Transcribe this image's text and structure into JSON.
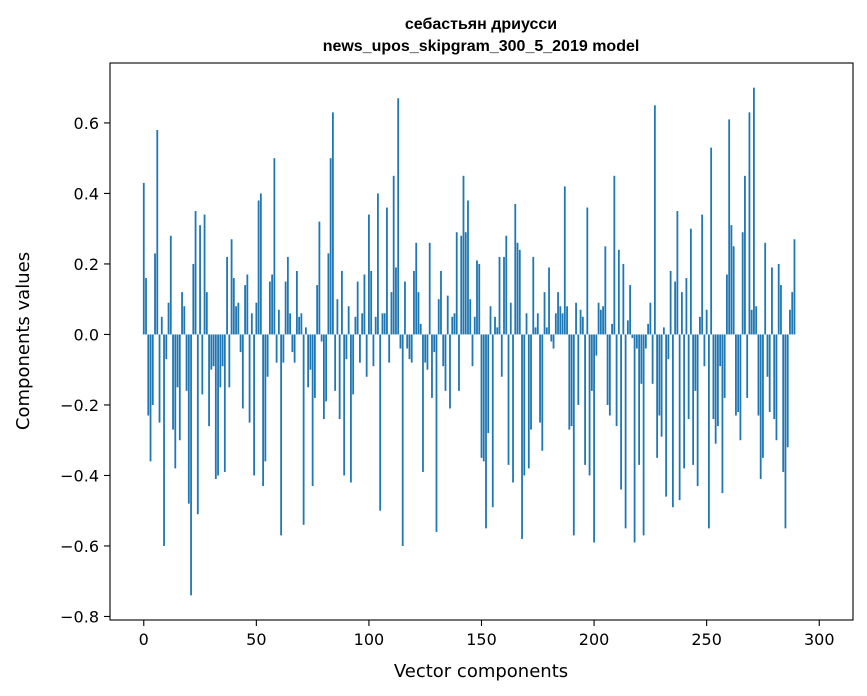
{
  "chart_data": {
    "type": "bar",
    "title": [
      "себастьян дриусси",
      "news_upos_skipgram_300_5_2019 model"
    ],
    "xlabel": "Vector components",
    "ylabel": "Components values",
    "xlim": [
      -15,
      315
    ],
    "ylim": [
      -0.81,
      0.77
    ],
    "xticks": [
      0,
      50,
      100,
      150,
      200,
      250,
      300
    ],
    "yticks": [
      -0.8,
      -0.6,
      -0.4,
      -0.2,
      0.0,
      0.2,
      0.4,
      0.6
    ],
    "ytick_labels": [
      "−0.8",
      "−0.6",
      "−0.4",
      "−0.2",
      "0.0",
      "0.2",
      "0.4",
      "0.6"
    ],
    "bar_color": "#1f77b4",
    "values": [
      0.43,
      0.16,
      -0.23,
      -0.36,
      -0.2,
      0.23,
      0.58,
      -0.25,
      0.05,
      -0.6,
      -0.07,
      0.09,
      0.28,
      -0.27,
      -0.38,
      -0.15,
      -0.3,
      0.12,
      0.08,
      -0.16,
      -0.48,
      -0.74,
      0.2,
      0.35,
      -0.51,
      0.31,
      -0.17,
      0.34,
      0.12,
      -0.26,
      -0.1,
      -0.09,
      -0.41,
      -0.4,
      -0.15,
      -0.09,
      -0.39,
      0.22,
      -0.15,
      0.27,
      0.16,
      0.08,
      0.09,
      -0.05,
      -0.21,
      0.14,
      0.17,
      -0.25,
      0.06,
      -0.4,
      0.09,
      0.38,
      0.4,
      -0.43,
      -0.36,
      -0.12,
      0.15,
      0.17,
      0.5,
      -0.08,
      0.07,
      -0.57,
      -0.08,
      0.15,
      0.22,
      0.06,
      -0.05,
      -0.08,
      0.18,
      0.05,
      0.06,
      -0.54,
      0.02,
      -0.15,
      -0.1,
      -0.43,
      -0.18,
      0.14,
      0.32,
      -0.02,
      -0.24,
      -0.19,
      0.23,
      0.5,
      0.63,
      -0.16,
      0.1,
      -0.24,
      0.18,
      -0.4,
      -0.07,
      0.08,
      -0.42,
      -0.17,
      0.05,
      0.15,
      -0.08,
      0.06,
      0.17,
      -0.12,
      0.34,
      0.18,
      -0.09,
      0.05,
      0.4,
      -0.5,
      0.06,
      0.06,
      0.36,
      -0.08,
      0.12,
      0.45,
      0.19,
      0.67,
      -0.04,
      -0.6,
      0.15,
      -0.04,
      -0.07,
      -0.08,
      0.18,
      0.26,
      0.12,
      0.03,
      -0.39,
      -0.08,
      -0.1,
      0.26,
      -0.18,
      -0.05,
      -0.56,
      0.1,
      0.18,
      -0.09,
      -0.16,
      0.11,
      -0.21,
      0.05,
      0.06,
      0.29,
      -0.16,
      0.28,
      0.45,
      0.29,
      0.38,
      0.1,
      -0.09,
      0.05,
      0.21,
      0.2,
      -0.35,
      -0.36,
      -0.55,
      -0.28,
      0.08,
      -0.49,
      0.05,
      0.02,
      0.22,
      -0.12,
      0.22,
      0.28,
      -0.37,
      0.09,
      -0.42,
      0.37,
      0.26,
      0.24,
      -0.58,
      -0.4,
      0.06,
      -0.38,
      -0.27,
      0.22,
      0.02,
      0.06,
      -0.25,
      -0.33,
      0.12,
      0.02,
      0.19,
      -0.02,
      -0.04,
      0.06,
      0.12,
      0.08,
      0.06,
      0.42,
      0.08,
      -0.27,
      -0.26,
      -0.57,
      0.09,
      -0.2,
      0.07,
      0.05,
      -0.37,
      0.36,
      -0.4,
      -0.16,
      -0.59,
      -0.06,
      0.09,
      0.07,
      0.08,
      0.25,
      -0.2,
      -0.23,
      0.03,
      0.45,
      -0.26,
      0.24,
      -0.44,
      0.2,
      -0.55,
      0.04,
      0.14,
      -0.01,
      -0.59,
      -0.04,
      -0.37,
      -0.14,
      -0.57,
      -0.04,
      0.03,
      0.09,
      -0.14,
      0.65,
      -0.35,
      -0.23,
      -0.29,
      0.02,
      -0.46,
      -0.07,
      0.18,
      -0.49,
      0.15,
      0.35,
      -0.47,
      0.12,
      -0.38,
      0.16,
      -0.24,
      0.3,
      -0.37,
      -0.16,
      -0.43,
      0.05,
      0.34,
      -0.09,
      0.07,
      -0.55,
      0.53,
      -0.24,
      -0.31,
      -0.26,
      -0.09,
      -0.45,
      -0.18,
      0.17,
      0.61,
      0.31,
      0.25,
      -0.23,
      -0.22,
      -0.3,
      0.29,
      0.45,
      -0.18,
      0.63,
      0.07,
      0.7,
      0.08,
      -0.23,
      -0.41,
      -0.35,
      0.26,
      -0.12,
      -0.22,
      0.19,
      -0.24,
      -0.3,
      0.2,
      0.14,
      -0.39,
      -0.55,
      -0.32,
      0.07,
      0.12,
      0.27
    ]
  }
}
